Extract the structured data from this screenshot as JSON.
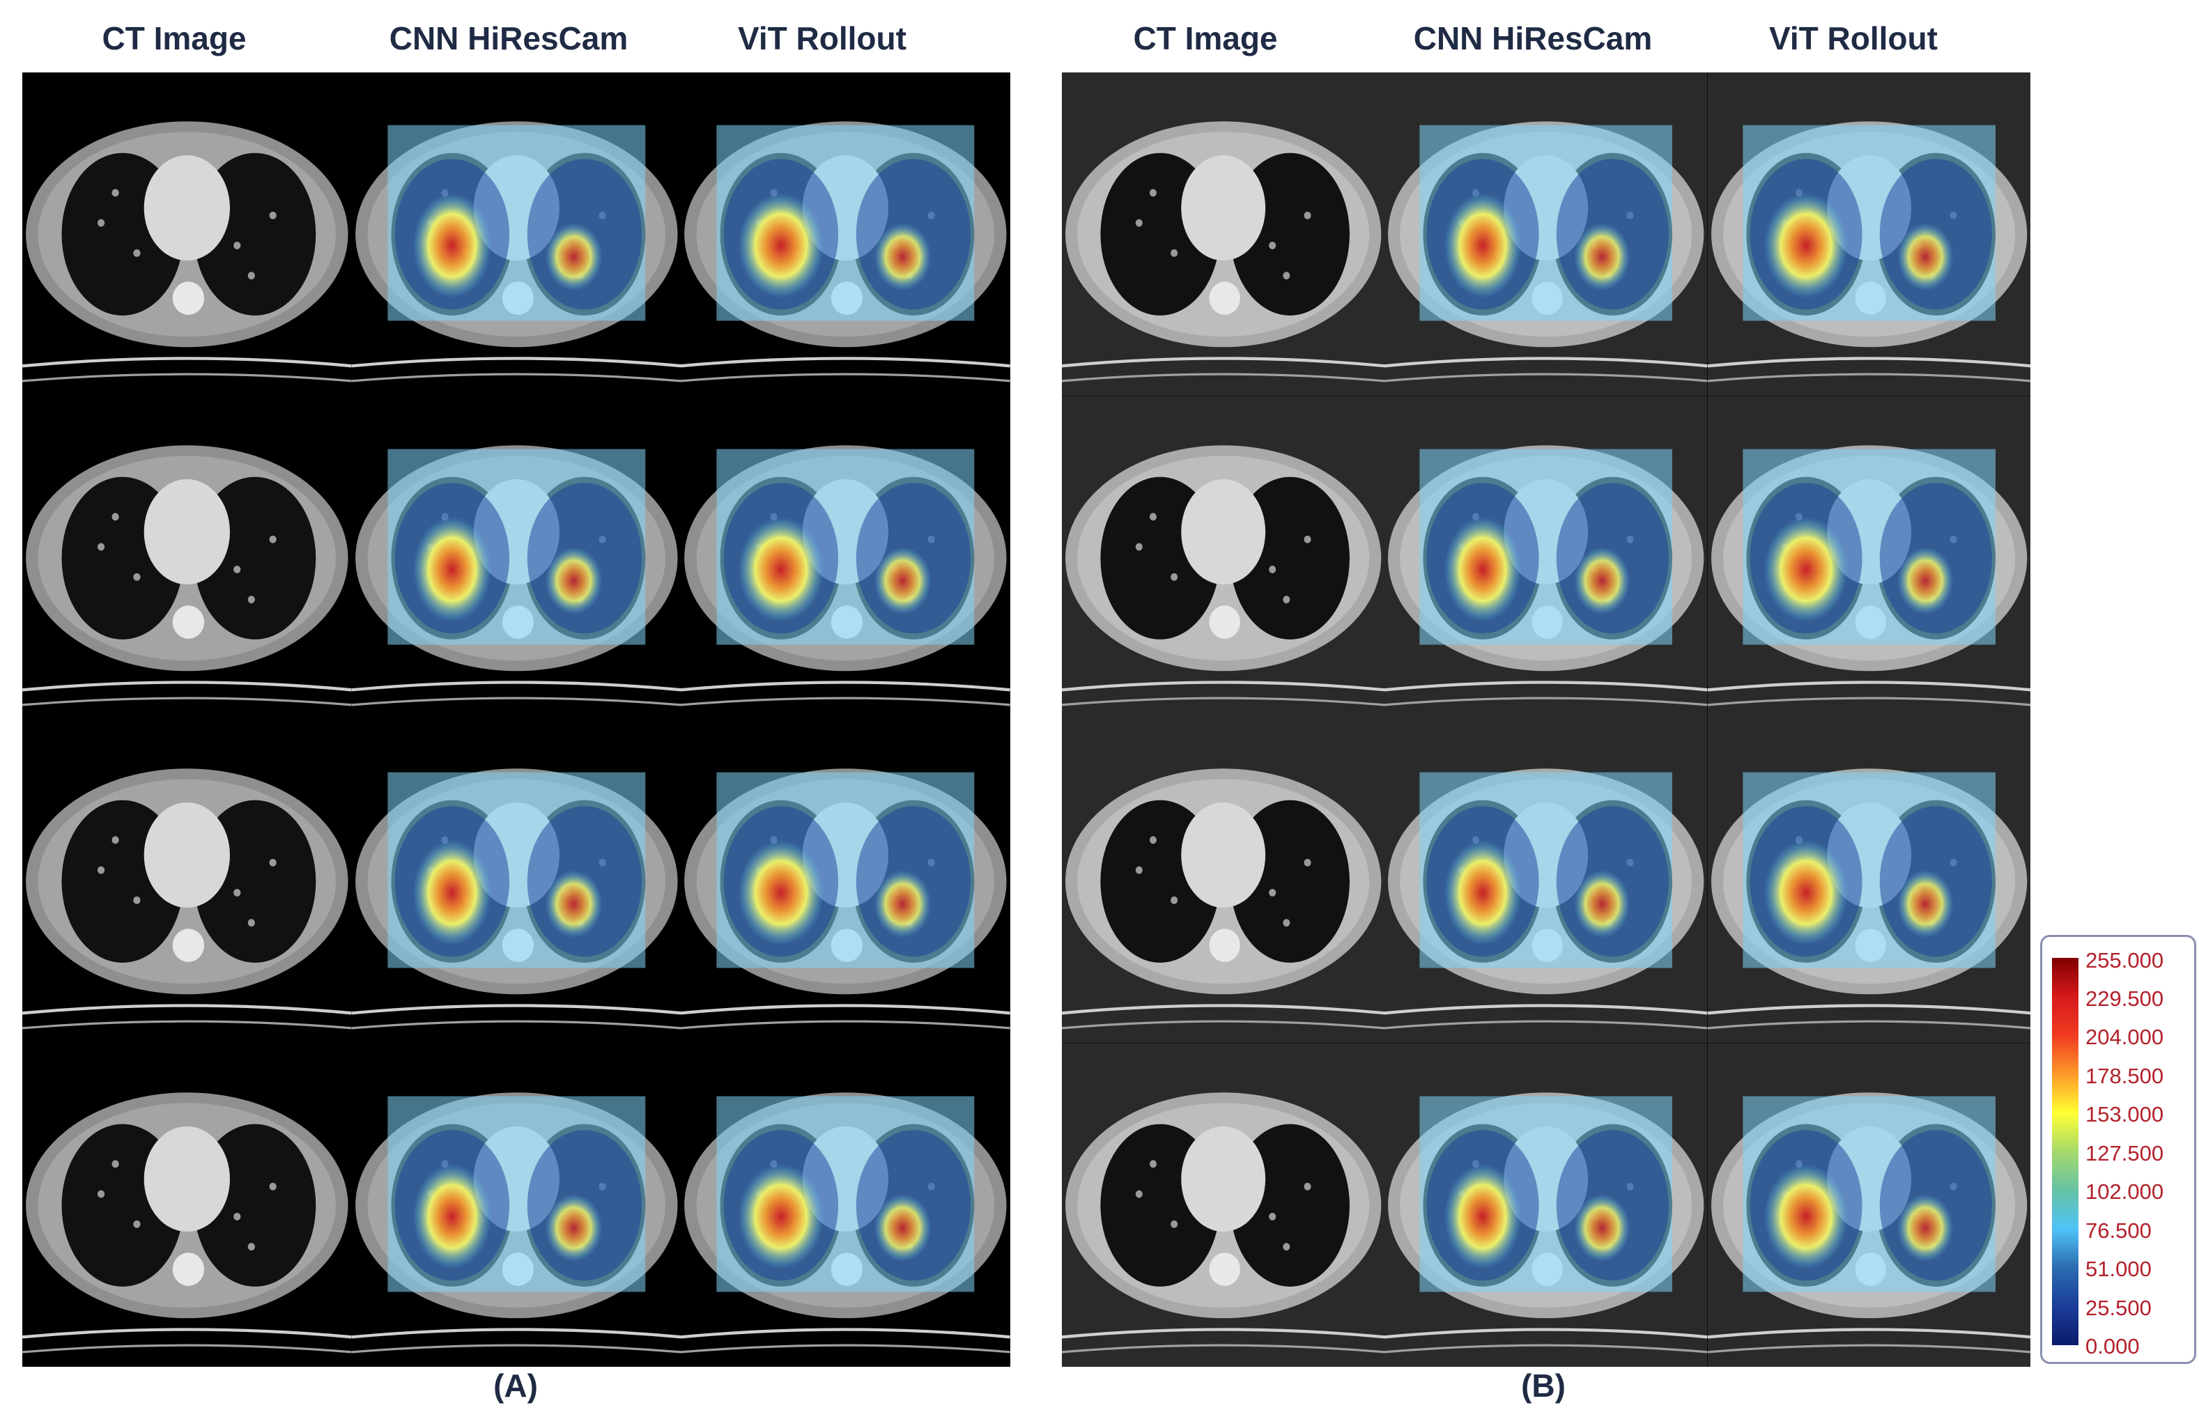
{
  "panel_a": {
    "label": "(A)",
    "columns": [
      "CT Image",
      "CNN HiResCam",
      "ViT Rollout"
    ]
  },
  "panel_b": {
    "label": "(B)",
    "columns": [
      "CT Image",
      "CNN HiResCam",
      "ViT Rollout"
    ]
  },
  "colorbar": {
    "ticks": [
      "255.000",
      "229.500",
      "204.000",
      "178.500",
      "153.000",
      "127.500",
      "102.000",
      "76.500",
      "51.000",
      "25.500",
      "0.000"
    ]
  },
  "colors": {
    "title_text": "#1f2a44",
    "tick_text": "#b3202a",
    "colorbar_border": "#8a8fb0"
  }
}
